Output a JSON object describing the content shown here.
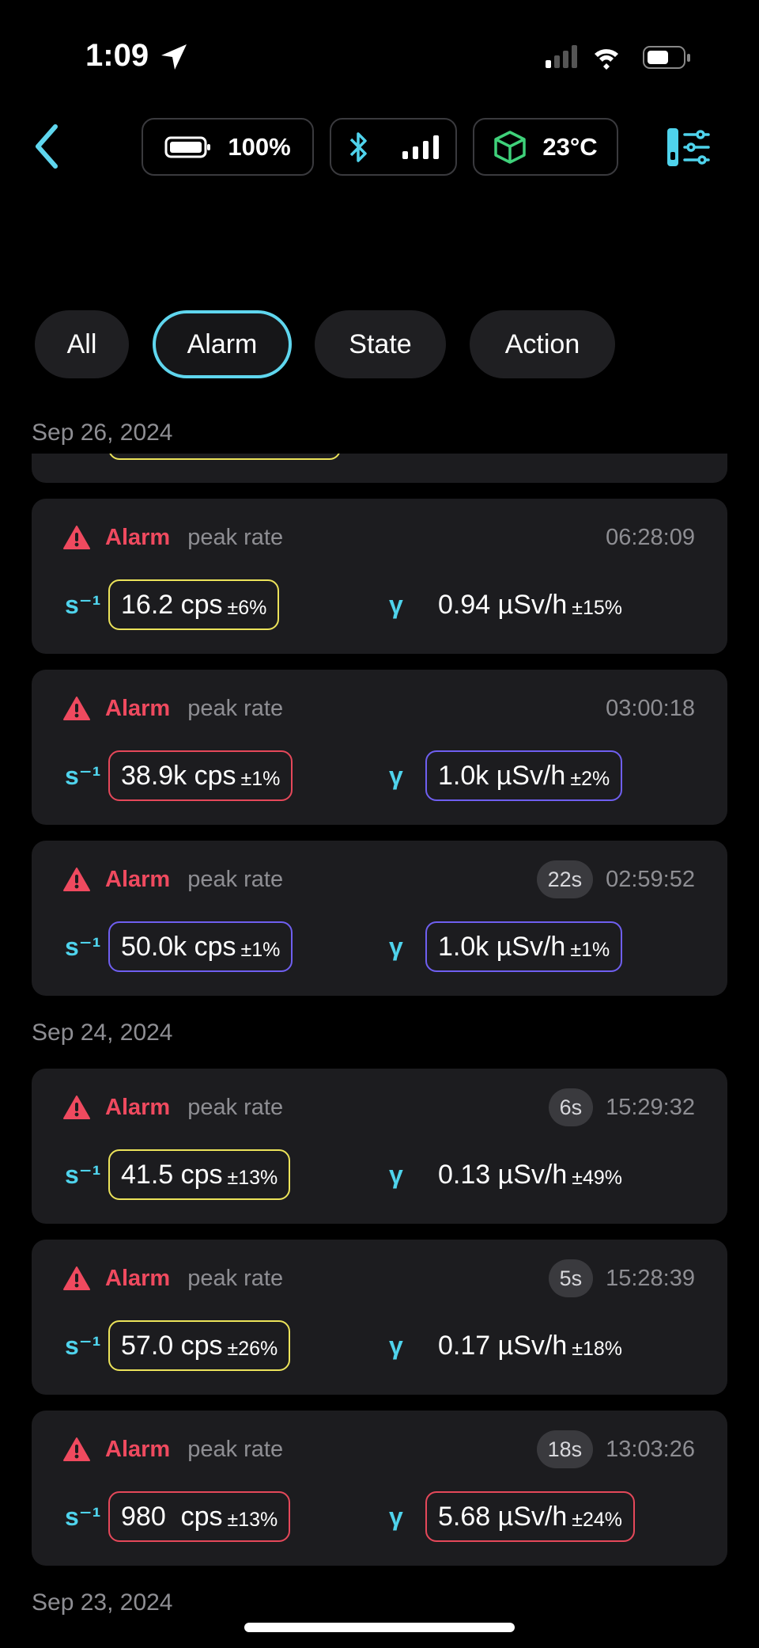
{
  "status_bar": {
    "time": "1:09"
  },
  "toolbar": {
    "battery": "100%",
    "temperature": "23°C"
  },
  "filters": {
    "items": [
      "All",
      "Alarm",
      "State",
      "Action"
    ],
    "selected": 1
  },
  "labels": {
    "rate_unit": "s⁻¹",
    "dose_symbol": "γ"
  },
  "groups": [
    {
      "date": "Sep 26, 2024",
      "events": [
        {
          "type": "Alarm",
          "detail": "peak rate",
          "time": "06:28:09",
          "rate": {
            "value": "16.2 cps",
            "error": "±6%",
            "outline": "#ece35a"
          },
          "dose": {
            "value": "0.94 µSv/h",
            "error": "±15%"
          }
        },
        {
          "type": "Alarm",
          "detail": "peak rate",
          "time": "03:00:18",
          "rate": {
            "value": "38.9k cps",
            "error": "±1%",
            "outline": "#e5485a"
          },
          "dose": {
            "value": "1.0k µSv/h",
            "error": "±2%",
            "outline": "#6f5ff0"
          }
        },
        {
          "type": "Alarm",
          "detail": "peak rate",
          "time": "02:59:52",
          "duration": "22s",
          "rate": {
            "value": "50.0k cps",
            "error": "±1%",
            "outline": "#6f5ff0"
          },
          "dose": {
            "value": "1.0k µSv/h",
            "error": "±1%",
            "outline": "#6f5ff0"
          }
        }
      ]
    },
    {
      "date": "Sep 24, 2024",
      "events": [
        {
          "type": "Alarm",
          "detail": "peak rate",
          "time": "15:29:32",
          "duration": "6s",
          "rate": {
            "value": "41.5 cps",
            "error": "±13%",
            "outline": "#ece35a"
          },
          "dose": {
            "value": "0.13 µSv/h",
            "error": "±49%"
          }
        },
        {
          "type": "Alarm",
          "detail": "peak rate",
          "time": "15:28:39",
          "duration": "5s",
          "rate": {
            "value": "57.0 cps",
            "error": "±26%",
            "outline": "#ece35a"
          },
          "dose": {
            "value": "0.17 µSv/h",
            "error": "±18%"
          }
        },
        {
          "type": "Alarm",
          "detail": "peak rate",
          "time": "13:03:26",
          "duration": "18s",
          "rate": {
            "value": "980  cps",
            "error": "±13%",
            "outline": "#e5485a"
          },
          "dose": {
            "value": "5.68 µSv/h",
            "error": "±24%",
            "outline": "#e5485a"
          }
        }
      ]
    },
    {
      "date": "Sep 23, 2024",
      "events": []
    }
  ]
}
